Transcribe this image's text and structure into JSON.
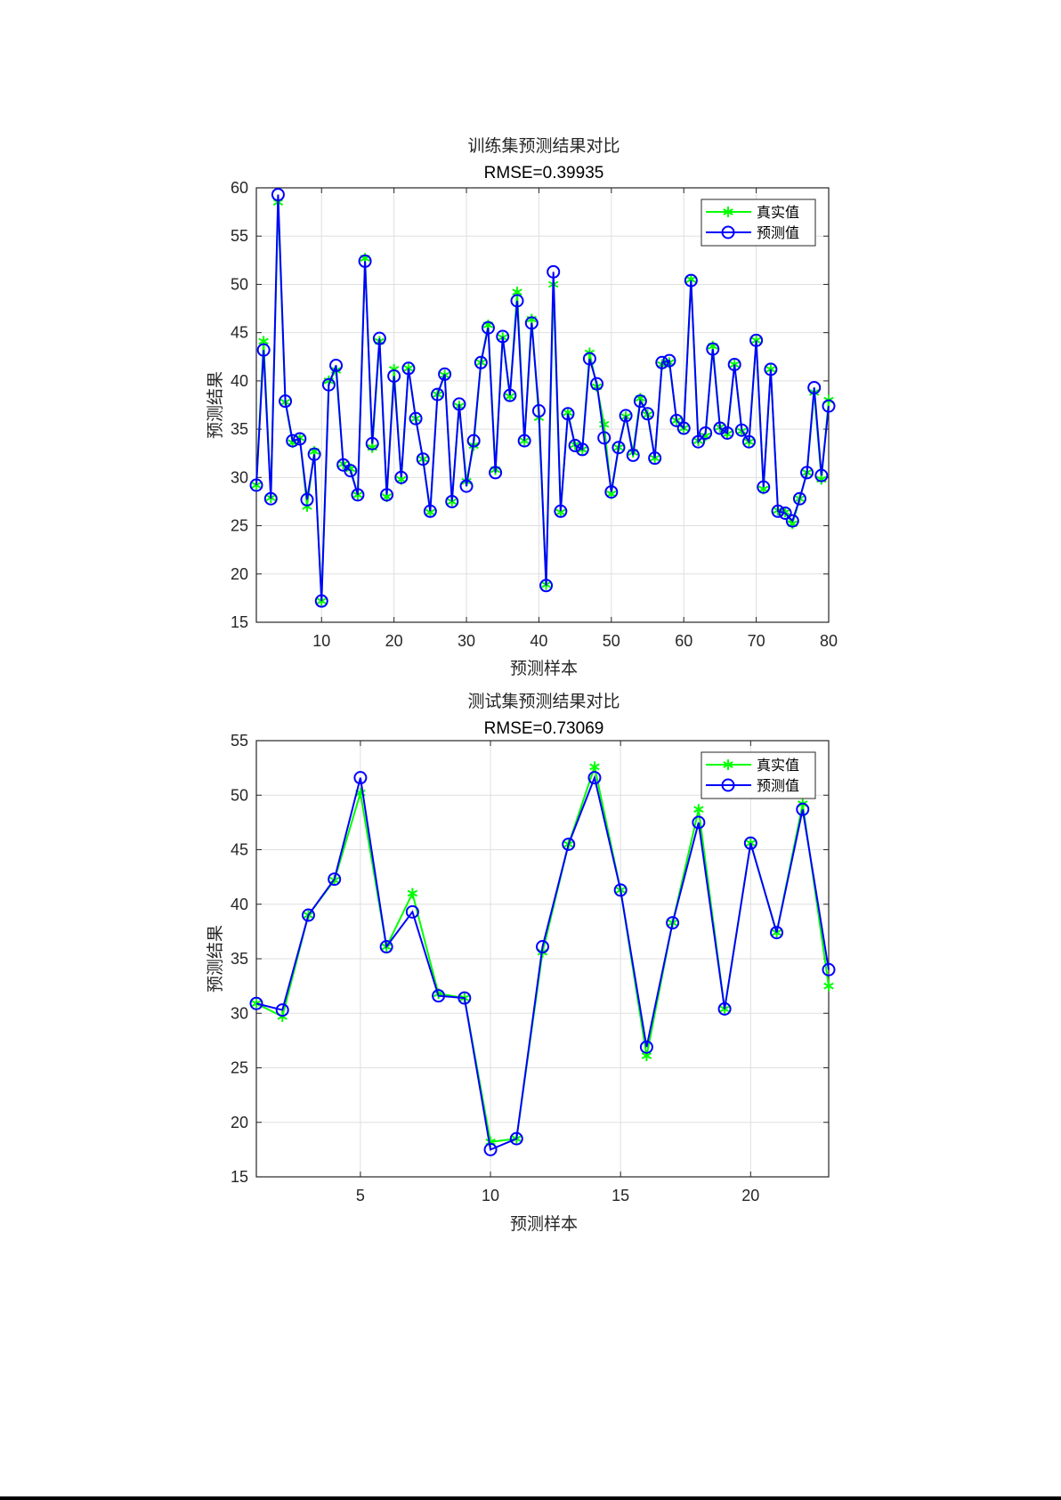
{
  "chart_data": [
    {
      "type": "line",
      "title": "训练集预测结果对比",
      "subtitle": "RMSE=0.39935",
      "xlabel": "预测样本",
      "ylabel": "预测结果",
      "xlim": [
        1,
        80
      ],
      "ylim": [
        15,
        60
      ],
      "xticks": [
        10,
        20,
        30,
        40,
        50,
        60,
        70,
        80
      ],
      "yticks": [
        15,
        20,
        25,
        30,
        35,
        40,
        45,
        50,
        55,
        60
      ],
      "grid": true,
      "legend_position": "top-right",
      "series": [
        {
          "name": "真实值",
          "color": "#00ff00",
          "marker": "asterisk",
          "values": [
            29.2,
            44.1,
            27.9,
            58.5,
            37.8,
            33.6,
            34.1,
            27.0,
            32.7,
            17.2,
            40.0,
            41.1,
            31.4,
            30.9,
            28.2,
            52.7,
            33.1,
            44.1,
            28.0,
            41.2,
            29.8,
            41.3,
            36.1,
            31.9,
            26.4,
            38.6,
            40.6,
            27.5,
            37.4,
            29.6,
            33.3,
            41.9,
            45.8,
            30.8,
            44.5,
            38.4,
            49.2,
            33.8,
            46.4,
            36.2,
            18.9,
            50.0,
            26.4,
            36.7,
            33.4,
            32.9,
            42.9,
            39.4,
            35.5,
            28.3,
            33.1,
            36.3,
            32.6,
            38.2,
            36.5,
            32.0,
            41.7,
            41.9,
            35.9,
            35.1,
            50.5,
            33.8,
            34.3,
            43.6,
            35.2,
            34.5,
            41.7,
            34.8,
            33.7,
            44.2,
            28.8,
            41.2,
            26.6,
            26.4,
            25.2,
            27.8,
            30.5,
            38.8,
            29.8,
            38.0
          ]
        },
        {
          "name": "预测值",
          "color": "#0000ff",
          "marker": "circle",
          "values": [
            29.2,
            43.2,
            27.8,
            59.3,
            37.9,
            33.8,
            34.0,
            27.7,
            32.4,
            17.2,
            39.6,
            41.6,
            31.3,
            30.7,
            28.2,
            52.4,
            33.5,
            44.4,
            28.2,
            40.5,
            30.0,
            41.3,
            36.1,
            31.9,
            26.5,
            38.6,
            40.7,
            27.5,
            37.6,
            29.1,
            33.8,
            41.9,
            45.5,
            30.5,
            44.6,
            38.5,
            48.3,
            33.8,
            46.0,
            36.9,
            18.8,
            51.3,
            26.5,
            36.6,
            33.3,
            32.9,
            42.3,
            39.7,
            34.1,
            28.5,
            33.1,
            36.4,
            32.3,
            37.9,
            36.6,
            32.0,
            41.9,
            42.1,
            35.9,
            35.1,
            50.4,
            33.7,
            34.6,
            43.3,
            35.1,
            34.6,
            41.7,
            34.9,
            33.7,
            44.2,
            29.0,
            41.2,
            26.5,
            26.3,
            25.5,
            27.8,
            30.5,
            39.3,
            30.2,
            37.4
          ]
        }
      ]
    },
    {
      "type": "line",
      "title": "测试集预测结果对比",
      "subtitle": "RMSE=0.73069",
      "xlabel": "预测样本",
      "ylabel": "预测结果",
      "xlim": [
        1,
        23
      ],
      "ylim": [
        15,
        55
      ],
      "xticks": [
        5,
        10,
        15,
        20
      ],
      "yticks": [
        15,
        20,
        25,
        30,
        35,
        40,
        45,
        50,
        55
      ],
      "grid": true,
      "legend_position": "top-right",
      "series": [
        {
          "name": "真实值",
          "color": "#00ff00",
          "marker": "asterisk",
          "values": [
            30.9,
            29.7,
            39.0,
            42.2,
            50.2,
            36.1,
            41.0,
            31.8,
            31.4,
            18.2,
            18.5,
            35.6,
            45.5,
            52.6,
            41.3,
            26.1,
            38.3,
            48.7,
            30.4,
            45.6,
            37.4,
            49.2,
            32.5
          ]
        },
        {
          "name": "预测值",
          "color": "#0000ff",
          "marker": "circle",
          "values": [
            30.9,
            30.3,
            39.0,
            42.3,
            51.6,
            36.1,
            39.3,
            31.6,
            31.4,
            17.5,
            18.5,
            36.1,
            45.5,
            51.6,
            41.3,
            26.9,
            38.3,
            47.5,
            30.4,
            45.6,
            37.4,
            48.7,
            34.0
          ]
        }
      ]
    }
  ]
}
